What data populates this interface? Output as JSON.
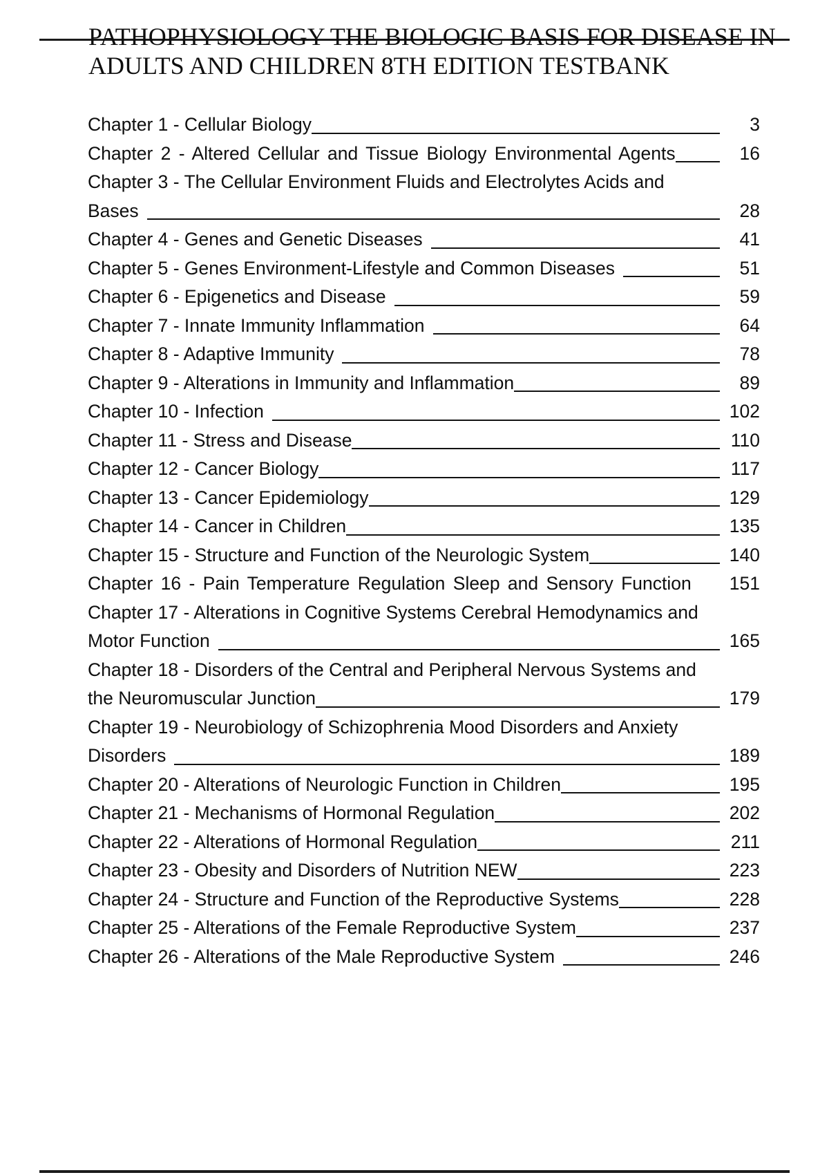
{
  "colors": {
    "ink": "#0f0f0f"
  },
  "title": {
    "line1": "PATHOPHYSIOLOGY THE BIOLOGIC BASIS FOR DISEASE IN",
    "line2": "ADULTS AND CHILDREN 8TH EDITION TESTBANK",
    "line1_struck_through": true
  },
  "toc": {
    "entries": [
      {
        "text": "Chapter 1 - Cellular Biology",
        "page": "3",
        "gap": false
      },
      {
        "text": "Chapter 2 - Altered Cellular and Tissue Biology Environmental Agents",
        "page": "16",
        "gap": false,
        "justify": true
      },
      {
        "line1": "Chapter 3 - The Cellular Environment Fluids and Electrolytes Acids and",
        "text": "Bases",
        "page": "28",
        "gap": true
      },
      {
        "text": "Chapter 4 - Genes and Genetic Diseases",
        "page": "41",
        "gap": true
      },
      {
        "text": "Chapter 5 - Genes Environment-Lifestyle and Common Diseases",
        "page": "51",
        "gap": true
      },
      {
        "text": "Chapter 6 - Epigenetics and Disease",
        "page": "59",
        "gap": true
      },
      {
        "text": "Chapter 7 - Innate Immunity Inflammation",
        "page": "64",
        "gap": true
      },
      {
        "text": "Chapter 8 - Adaptive Immunity",
        "page": "78",
        "gap": true
      },
      {
        "text": "Chapter 9 - Alterations in Immunity and Inflammation",
        "page": "89",
        "gap": false
      },
      {
        "text": "Chapter 10 - Infection",
        "page": "102",
        "gap": true
      },
      {
        "text": "Chapter 11 - Stress and Disease",
        "page": "110",
        "gap": false
      },
      {
        "text": "Chapter 12 - Cancer Biology",
        "page": "117",
        "gap": false
      },
      {
        "text": "Chapter 13 - Cancer Epidemiology",
        "page": "129",
        "gap": false
      },
      {
        "text": "Chapter 14 - Cancer in Children",
        "page": "135",
        "gap": false
      },
      {
        "text": "Chapter 15 - Structure and Function of the Neurologic System",
        "page": "140",
        "gap": false
      },
      {
        "text": "Chapter 16 - Pain Temperature Regulation Sleep and Sensory Function",
        "page": "151",
        "gap": false,
        "justify": true,
        "no_line": true
      },
      {
        "line1": "Chapter 17 - Alterations in Cognitive Systems Cerebral Hemodynamics and",
        "text": "Motor Function",
        "page": "165",
        "gap": true
      },
      {
        "line1": "Chapter 18 - Disorders of the Central and Peripheral Nervous Systems and",
        "text": "the Neuromuscular Junction",
        "page": "179",
        "gap": false
      },
      {
        "line1": "Chapter 19 - Neurobiology of Schizophrenia Mood Disorders and Anxiety",
        "text": "Disorders",
        "page": "189",
        "gap": true
      },
      {
        "text": "Chapter 20 - Alterations of Neurologic Function in Children",
        "page": "195",
        "gap": false
      },
      {
        "text": "Chapter 21 - Mechanisms of Hormonal Regulation",
        "page": "202",
        "gap": false
      },
      {
        "text": "Chapter 22 - Alterations of Hormonal Regulation",
        "page": "211",
        "gap": false
      },
      {
        "text": "Chapter 23 - Obesity and Disorders of Nutrition NEW",
        "page": "223",
        "gap": false
      },
      {
        "text": "Chapter 24 - Structure and Function of the Reproductive Systems",
        "page": "228",
        "gap": false
      },
      {
        "text": "Chapter 25 - Alterations of the Female Reproductive System",
        "page": "237",
        "gap": false
      },
      {
        "text": "Chapter 26 - Alterations of the Male Reproductive System",
        "page": "246",
        "gap": true
      }
    ]
  }
}
